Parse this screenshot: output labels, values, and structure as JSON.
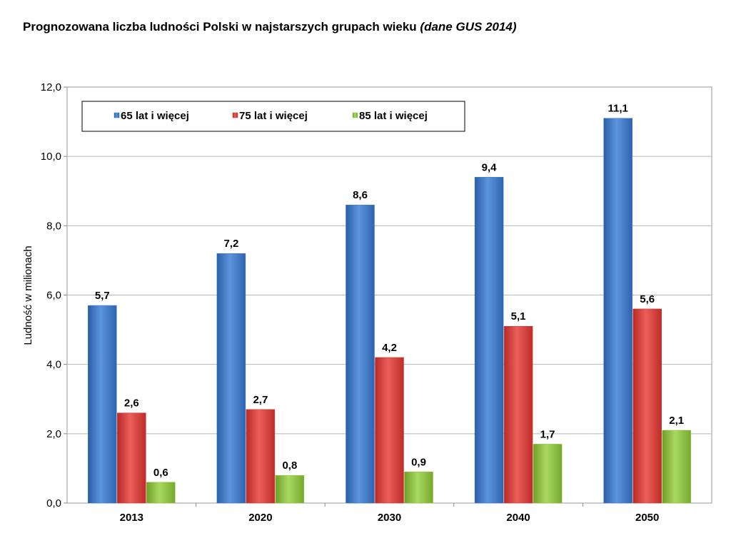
{
  "chart_data": {
    "type": "bar",
    "title": "Prognozowana liczba ludności Polski w najstarszych grupach wieku",
    "title_note": "(dane GUS 2014)",
    "xlabel": "",
    "ylabel": "Ludność w milionach",
    "ylim": [
      0,
      12
    ],
    "y_ticks": [
      "0,0",
      "2,0",
      "4,0",
      "6,0",
      "8,0",
      "10,0",
      "12,0"
    ],
    "categories": [
      "2013",
      "2020",
      "2030",
      "2040",
      "2050"
    ],
    "series": [
      {
        "name": "65 lat i więcej",
        "color": "#3a78c9",
        "values": [
          5.7,
          7.2,
          8.6,
          9.4,
          11.1
        ],
        "labels": [
          "5,7",
          "7,2",
          "8,6",
          "9,4",
          "11,1"
        ]
      },
      {
        "name": "75 lat i więcej",
        "color": "#d63a36",
        "values": [
          2.6,
          2.7,
          4.2,
          5.1,
          5.6
        ],
        "labels": [
          "2,6",
          "2,7",
          "4,2",
          "5,1",
          "5,6"
        ]
      },
      {
        "name": "85 lat i więcej",
        "color": "#8ec63f",
        "values": [
          0.6,
          0.8,
          0.9,
          1.7,
          2.1
        ],
        "labels": [
          "0,6",
          "0,8",
          "0,9",
          "1,7",
          "2,1"
        ]
      }
    ],
    "grid": true,
    "legend_position": "top-left"
  }
}
